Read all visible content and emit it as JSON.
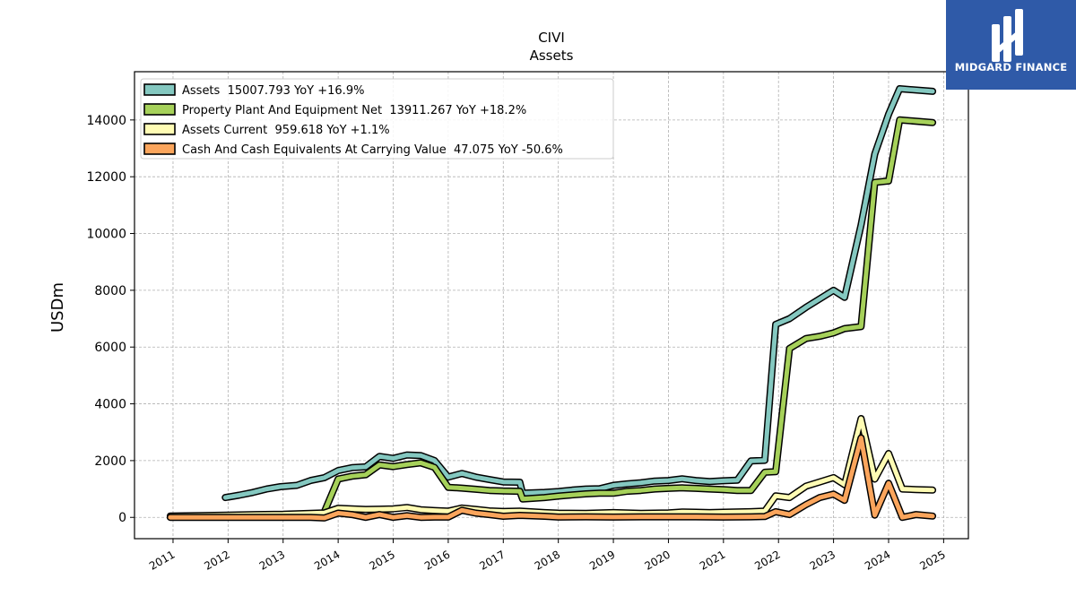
{
  "logo": {
    "text": "MIDGARD FINANCE"
  },
  "chart_data": {
    "type": "line",
    "title": "CIVI",
    "subtitle": "Assets",
    "ylabel": "USDm",
    "xlabel": "",
    "ylim": [
      -750,
      15700
    ],
    "xlim": [
      2010.3,
      2025.45
    ],
    "yticks": [
      0,
      2000,
      4000,
      6000,
      8000,
      10000,
      12000,
      14000
    ],
    "ytick_labels": [
      "0",
      "2000",
      "4000",
      "6000",
      "8000",
      "10000",
      "12000",
      "14000"
    ],
    "xticks": [
      2011,
      2012,
      2013,
      2014,
      2015,
      2016,
      2017,
      2018,
      2019,
      2020,
      2021,
      2022,
      2023,
      2024,
      2025
    ],
    "xtick_labels": [
      "2011",
      "2012",
      "2013",
      "2014",
      "2015",
      "2016",
      "2017",
      "2018",
      "2019",
      "2020",
      "2021",
      "2022",
      "2023",
      "2024",
      "2025"
    ],
    "grid": true,
    "legend_position": "top-left",
    "series": [
      {
        "name": "Assets  15007.793 YoY +16.9%",
        "color": "#84c8c0",
        "x": [
          2011.95,
          2012.2,
          2012.45,
          2012.7,
          2012.95,
          2013.25,
          2013.5,
          2013.75,
          2014.0,
          2014.25,
          2014.5,
          2014.75,
          2015.0,
          2015.25,
          2015.5,
          2015.75,
          2016.0,
          2016.25,
          2016.5,
          2016.75,
          2017.0,
          2017.3,
          2017.35,
          2017.75,
          2018.0,
          2018.25,
          2018.5,
          2018.75,
          2019.0,
          2019.25,
          2019.5,
          2019.75,
          2020.0,
          2020.25,
          2020.5,
          2020.75,
          2021.0,
          2021.25,
          2021.5,
          2021.75,
          2021.95,
          2022.2,
          2022.5,
          2022.75,
          2023.0,
          2023.2,
          2023.5,
          2023.75,
          2024.0,
          2024.2,
          2024.8
        ],
        "y": [
          700,
          780,
          880,
          1000,
          1080,
          1130,
          1300,
          1400,
          1650,
          1750,
          1780,
          2150,
          2080,
          2200,
          2180,
          2000,
          1420,
          1550,
          1420,
          1330,
          1250,
          1240,
          850,
          880,
          910,
          960,
          1000,
          1010,
          1130,
          1180,
          1220,
          1280,
          1300,
          1360,
          1300,
          1260,
          1290,
          1310,
          1990,
          2010,
          6800,
          7000,
          7400,
          7700,
          8000,
          7750,
          10300,
          12800,
          14200,
          15100,
          15008
        ]
      },
      {
        "name": "Property Plant And Equipment Net  13911.267 YoY +18.2%",
        "color": "#a6d15a",
        "x": [
          2013.75,
          2014.0,
          2014.25,
          2014.5,
          2014.75,
          2015.0,
          2015.25,
          2015.5,
          2015.75,
          2016.0,
          2016.25,
          2016.5,
          2016.75,
          2017.0,
          2017.3,
          2017.35,
          2017.75,
          2018.0,
          2018.25,
          2018.5,
          2018.75,
          2019.0,
          2019.25,
          2019.5,
          2019.75,
          2020.0,
          2020.25,
          2020.5,
          2020.75,
          2021.0,
          2021.25,
          2021.5,
          2021.75,
          2021.95,
          2022.2,
          2022.5,
          2022.75,
          2023.0,
          2023.2,
          2023.5,
          2023.75,
          2024.0,
          2024.2,
          2024.8
        ],
        "y": [
          200,
          1350,
          1450,
          1500,
          1850,
          1790,
          1860,
          1920,
          1760,
          1060,
          1030,
          990,
          950,
          930,
          920,
          650,
          700,
          750,
          790,
          830,
          850,
          850,
          920,
          950,
          1000,
          1020,
          1040,
          1020,
          1000,
          980,
          950,
          950,
          1590,
          1610,
          5950,
          6300,
          6380,
          6500,
          6650,
          6720,
          11800,
          11850,
          14000,
          13911
        ]
      },
      {
        "name": "Assets Current  959.618 YoY +1.1%",
        "color": "#fffcb4",
        "x": [
          2010.95,
          2011.5,
          2012.0,
          2012.5,
          2013.0,
          2013.5,
          2013.75,
          2014.0,
          2014.25,
          2014.5,
          2014.75,
          2015.0,
          2015.25,
          2015.5,
          2015.75,
          2016.0,
          2016.25,
          2016.5,
          2016.75,
          2017.0,
          2017.3,
          2017.75,
          2018.0,
          2018.5,
          2019.0,
          2019.5,
          2020.0,
          2020.25,
          2020.5,
          2020.75,
          2021.0,
          2021.5,
          2021.75,
          2021.95,
          2022.2,
          2022.5,
          2022.75,
          2023.0,
          2023.2,
          2023.5,
          2023.75,
          2024.0,
          2024.25,
          2024.5,
          2024.8
        ],
        "y": [
          50,
          60,
          80,
          100,
          110,
          140,
          160,
          320,
          300,
          280,
          290,
          300,
          350,
          270,
          240,
          220,
          330,
          280,
          230,
          210,
          220,
          170,
          150,
          140,
          170,
          140,
          160,
          190,
          180,
          170,
          180,
          200,
          220,
          760,
          700,
          1100,
          1250,
          1400,
          1150,
          3480,
          1350,
          2250,
          1000,
          980,
          960
        ]
      },
      {
        "name": "Cash And Cash Equivalents At Carrying Value  47.075 YoY -50.6%",
        "color": "#fba55c",
        "x": [
          2010.95,
          2011.5,
          2012.0,
          2012.5,
          2013.0,
          2013.5,
          2013.75,
          2014.0,
          2014.25,
          2014.5,
          2014.75,
          2015.0,
          2015.25,
          2015.5,
          2015.75,
          2016.0,
          2016.25,
          2016.5,
          2016.75,
          2017.0,
          2017.3,
          2017.75,
          2018.0,
          2018.5,
          2019.0,
          2019.5,
          2020.0,
          2020.5,
          2021.0,
          2021.5,
          2021.75,
          2021.95,
          2022.2,
          2022.5,
          2022.75,
          2023.0,
          2023.2,
          2023.5,
          2023.75,
          2024.0,
          2024.25,
          2024.5,
          2024.8
        ],
        "y": [
          0,
          0,
          0,
          0,
          0,
          0,
          -20,
          150,
          100,
          0,
          100,
          0,
          60,
          0,
          10,
          10,
          250,
          150,
          100,
          40,
          70,
          40,
          10,
          20,
          10,
          20,
          20,
          20,
          10,
          20,
          30,
          200,
          100,
          450,
          700,
          820,
          600,
          2800,
          80,
          1200,
          0,
          100,
          47
        ]
      }
    ]
  }
}
